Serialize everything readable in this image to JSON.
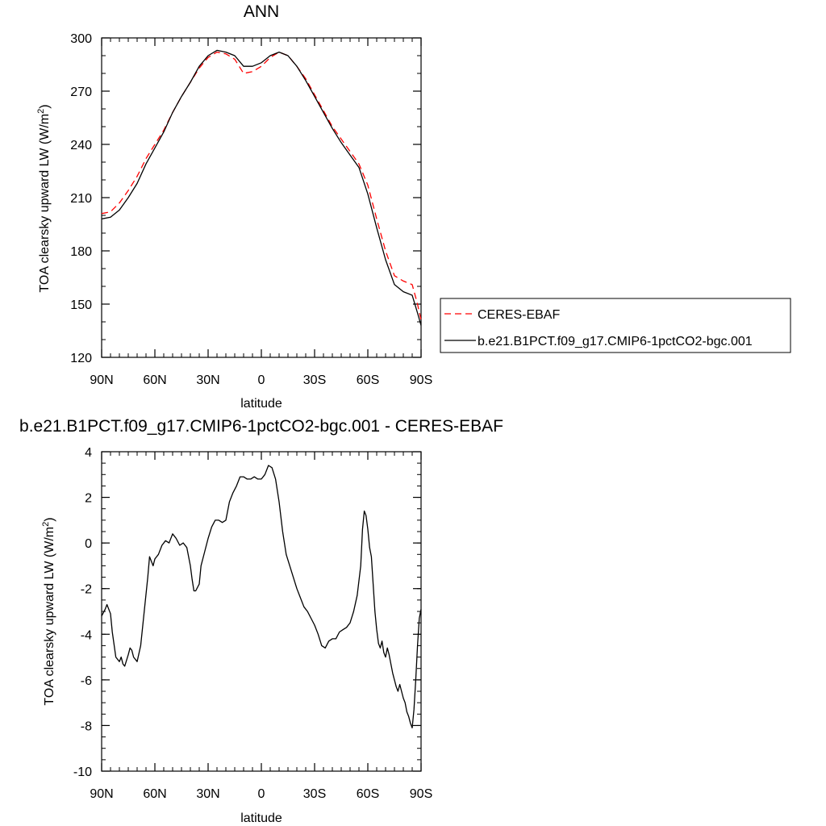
{
  "chart_data": [
    {
      "type": "line",
      "title": "ANN",
      "xlabel": "latitude",
      "ylabel": "TOA clearsky upward LW (W/m",
      "ylabel_sup": "2",
      "ylabel_tail": ")",
      "xlim": [
        90,
        -90
      ],
      "ylim": [
        120,
        300
      ],
      "xticks": [
        90,
        60,
        30,
        0,
        -30,
        -60,
        -90
      ],
      "xtick_labels": [
        "90N",
        "60N",
        "30N",
        "0",
        "30S",
        "60S",
        "90S"
      ],
      "yticks": [
        120,
        150,
        180,
        210,
        240,
        270,
        300
      ],
      "yminor_step": 10,
      "legend_position": "right",
      "series": [
        {
          "name": "CERES-EBAF",
          "color": "#ff0000",
          "dash": "dashed",
          "x": [
            90,
            85,
            80,
            75,
            70,
            65,
            60,
            55,
            50,
            45,
            40,
            35,
            30,
            25,
            20,
            15,
            10,
            5,
            0,
            -5,
            -10,
            -15,
            -20,
            -25,
            -30,
            -35,
            -40,
            -45,
            -50,
            -55,
            -60,
            -65,
            -70,
            -75,
            -80,
            -85,
            -88,
            -90
          ],
          "y": [
            201,
            202,
            207,
            214,
            222,
            232,
            240,
            248,
            258,
            267,
            275,
            283,
            289,
            292,
            291,
            288,
            280,
            281,
            284,
            289,
            292,
            290,
            284,
            277,
            268,
            259,
            250,
            243,
            236,
            229,
            217,
            198,
            180,
            166,
            163,
            161,
            150,
            141
          ]
        },
        {
          "name": "b.e21.B1PCT.f09_g17.CMIP6-1pctCO2-bgc.001",
          "color": "#000000",
          "dash": "solid",
          "x": [
            90,
            85,
            80,
            75,
            70,
            65,
            60,
            55,
            50,
            45,
            40,
            35,
            30,
            25,
            20,
            15,
            10,
            5,
            0,
            -5,
            -10,
            -15,
            -20,
            -25,
            -30,
            -35,
            -40,
            -45,
            -50,
            -55,
            -60,
            -65,
            -70,
            -75,
            -80,
            -85,
            -88,
            -90
          ],
          "y": [
            198,
            199,
            203,
            210,
            218,
            229,
            238,
            247,
            258,
            267,
            275,
            284,
            290,
            293,
            292,
            290,
            284,
            284,
            286,
            290,
            292,
            290,
            284,
            276,
            267,
            258,
            249,
            241,
            234,
            227,
            212,
            193,
            175,
            161,
            157,
            155,
            145,
            138
          ]
        }
      ]
    },
    {
      "type": "line",
      "title": "b.e21.B1PCT.f09_g17.CMIP6-1pctCO2-bgc.001 - CERES-EBAF",
      "xlabel": "latitude",
      "ylabel": "TOA clearsky upward LW (W/m",
      "ylabel_sup": "2",
      "ylabel_tail": ")",
      "xlim": [
        90,
        -90
      ],
      "ylim": [
        -10,
        4
      ],
      "xticks": [
        90,
        60,
        30,
        0,
        -30,
        -60,
        -90
      ],
      "xtick_labels": [
        "90N",
        "60N",
        "30N",
        "0",
        "30S",
        "60S",
        "90S"
      ],
      "yticks": [
        -10,
        -8,
        -6,
        -4,
        -2,
        0,
        2,
        4
      ],
      "yminor_step": 0.5,
      "series": [
        {
          "color": "#000000",
          "dash": "solid",
          "x": [
            90,
            88,
            87,
            85,
            84,
            82,
            80,
            79,
            78,
            77,
            75,
            74,
            73,
            72,
            70,
            68,
            66,
            64,
            63,
            61,
            60,
            58,
            56,
            54,
            52,
            50,
            48,
            46,
            44,
            42,
            40,
            39,
            38,
            37,
            35,
            34,
            32,
            30,
            28,
            26,
            24,
            22,
            20,
            18,
            16,
            14,
            12,
            10,
            8,
            6,
            4,
            2,
            0,
            -2,
            -4,
            -6,
            -8,
            -10,
            -12,
            -14,
            -16,
            -18,
            -20,
            -22,
            -24,
            -26,
            -28,
            -30,
            -32,
            -34,
            -36,
            -38,
            -40,
            -42,
            -44,
            -46,
            -48,
            -50,
            -52,
            -54,
            -56,
            -57,
            -58,
            -59,
            -60,
            -61,
            -62,
            -63,
            -64,
            -65,
            -66,
            -67,
            -68,
            -69,
            -70,
            -71,
            -72,
            -73,
            -74,
            -75,
            -76,
            -77,
            -78,
            -79,
            -80,
            -81,
            -82,
            -83,
            -84,
            -85,
            -86,
            -87,
            -88,
            -89,
            -90
          ],
          "y": [
            -3.2,
            -2.9,
            -2.7,
            -3.1,
            -3.9,
            -5.0,
            -5.2,
            -5.0,
            -5.3,
            -5.4,
            -4.9,
            -4.6,
            -4.7,
            -5.0,
            -5.2,
            -4.5,
            -3.0,
            -1.5,
            -0.6,
            -1.0,
            -0.7,
            -0.5,
            -0.1,
            0.1,
            0.0,
            0.4,
            0.2,
            -0.1,
            0.0,
            -0.2,
            -1.0,
            -1.6,
            -2.1,
            -2.1,
            -1.8,
            -1.0,
            -0.4,
            0.2,
            0.7,
            1.0,
            1.0,
            0.9,
            1.0,
            1.8,
            2.2,
            2.5,
            2.9,
            2.9,
            2.8,
            2.8,
            2.9,
            2.8,
            2.8,
            3.0,
            3.4,
            3.3,
            2.8,
            1.8,
            0.5,
            -0.5,
            -1.0,
            -1.5,
            -2.0,
            -2.4,
            -2.8,
            -3.0,
            -3.3,
            -3.6,
            -4.0,
            -4.5,
            -4.6,
            -4.3,
            -4.2,
            -4.2,
            -3.9,
            -3.8,
            -3.7,
            -3.5,
            -3.0,
            -2.3,
            -1.0,
            0.6,
            1.4,
            1.2,
            0.6,
            -0.2,
            -0.6,
            -1.8,
            -3.0,
            -3.8,
            -4.4,
            -4.6,
            -4.3,
            -4.8,
            -5.0,
            -4.6,
            -4.9,
            -5.3,
            -5.7,
            -6.0,
            -6.3,
            -6.5,
            -6.2,
            -6.5,
            -6.8,
            -7.0,
            -7.4,
            -7.6,
            -7.9,
            -8.1,
            -7.3,
            -6.0,
            -4.5,
            -3.3,
            -2.9
          ]
        }
      ]
    }
  ]
}
